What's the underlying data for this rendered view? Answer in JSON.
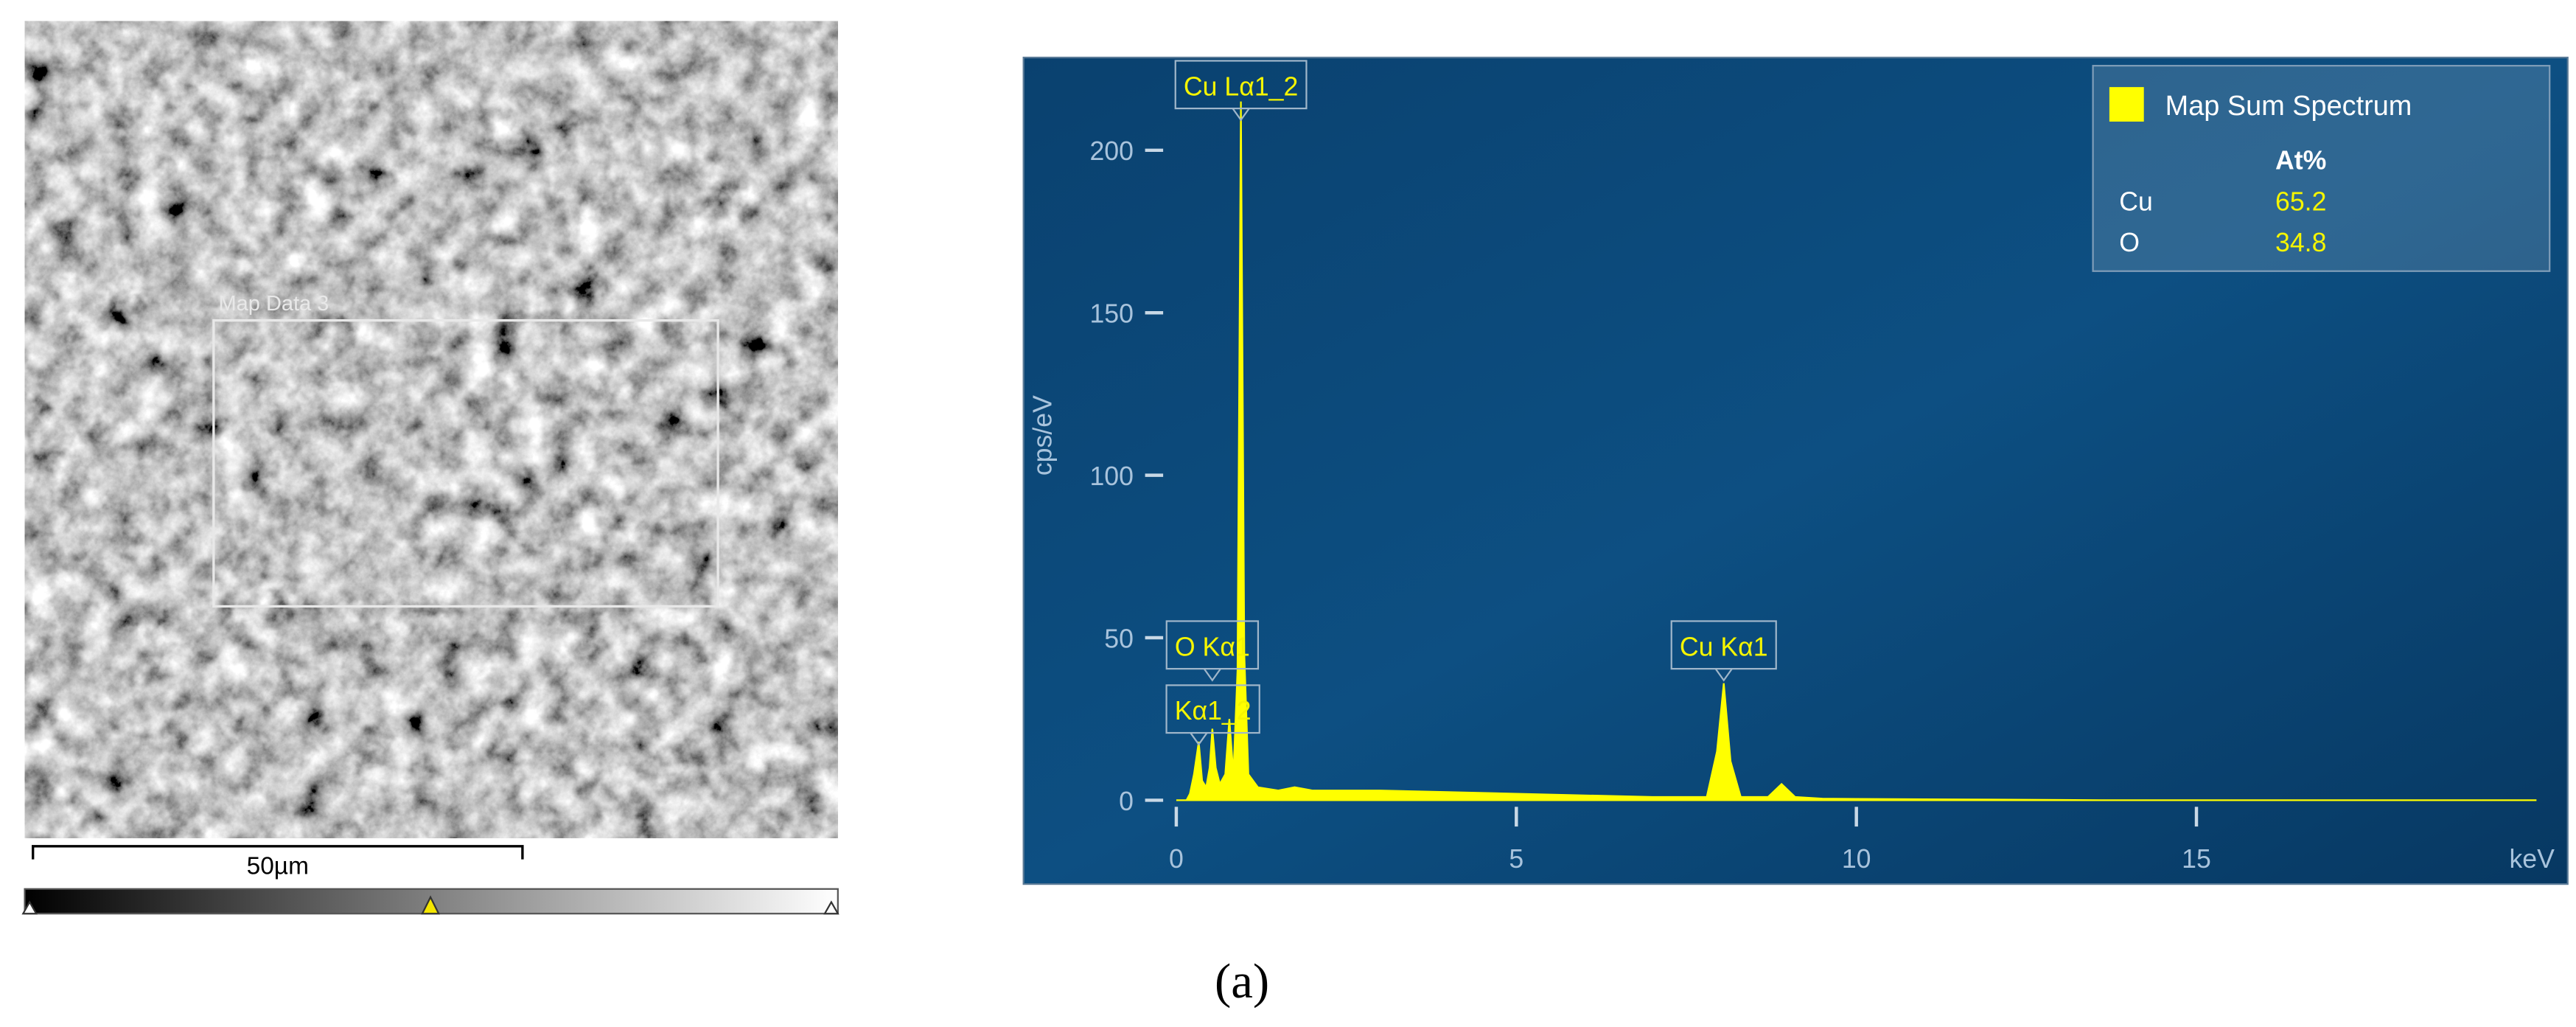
{
  "image_panel": {
    "region_label": "Map Data 3",
    "scale_bar": "50µm"
  },
  "caption": "(a)",
  "chart_data": {
    "type": "area",
    "x_label": "keV",
    "y_label": "cps/eV",
    "x": [
      0,
      0.15,
      0.2,
      0.26,
      0.33,
      0.38,
      0.44,
      0.49,
      0.53,
      0.58,
      0.64,
      0.72,
      0.78,
      0.84,
      0.9,
      0.95,
      1.0,
      1.06,
      1.2,
      1.5,
      1.74,
      2,
      3,
      4,
      5,
      6,
      7,
      7.8,
      7.95,
      8.05,
      8.15,
      8.3,
      8.7,
      8.9,
      9.1,
      9.5,
      10,
      11,
      12,
      13,
      13.6,
      14,
      20
    ],
    "series": [
      {
        "name": "Map Sum Spectrum",
        "color": "#ffff00",
        "values": [
          0,
          0,
          2,
          8,
          18,
          6,
          4,
          10,
          22,
          10,
          5,
          8,
          25,
          8,
          40,
          215,
          45,
          8,
          4,
          3,
          4,
          3,
          3,
          2.5,
          2,
          1.5,
          1,
          1,
          15,
          36,
          12,
          1,
          1,
          5,
          1,
          0.5,
          0.4,
          0.3,
          0.2,
          0.1,
          0,
          0,
          0
        ]
      }
    ],
    "xlim": [
      0,
      20
    ],
    "ylim": [
      0,
      225
    ],
    "xticks": [
      0,
      5,
      10,
      15
    ],
    "yticks": [
      0,
      50,
      100,
      150,
      200
    ],
    "annotations": [
      {
        "text": "Cu Lα1_2",
        "x": 0.95
      },
      {
        "text": "O Kα1",
        "x": 0.53
      },
      {
        "text": "Kα1_2",
        "x": 0.33
      },
      {
        "text": "Cu Kα1",
        "x": 8.05
      }
    ],
    "composition": {
      "header": "At%",
      "rows": [
        [
          "Cu",
          "65.2"
        ],
        [
          "O",
          "34.8"
        ]
      ]
    }
  }
}
